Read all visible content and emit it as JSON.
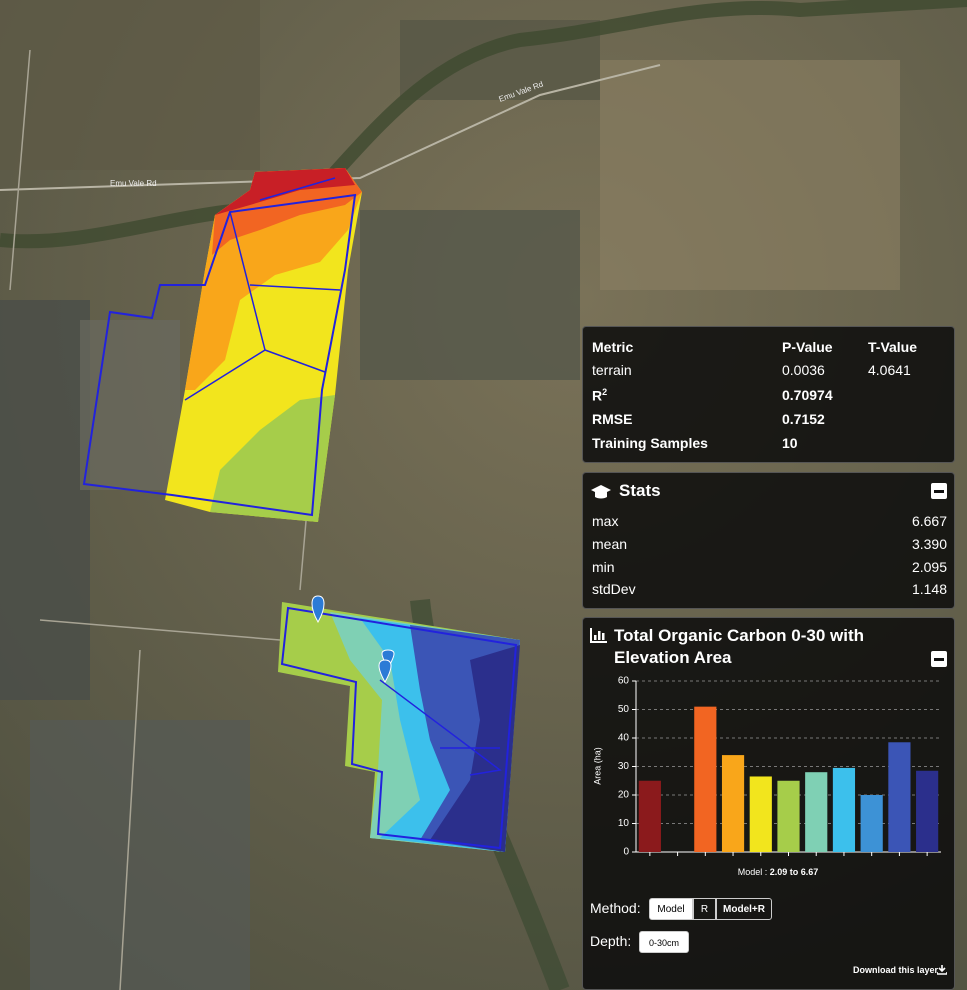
{
  "map": {
    "road_labels": [
      "Emu Vale Rd",
      "Emu Vale Rd"
    ]
  },
  "metrics": {
    "header": [
      "Metric",
      "P-Value",
      "T-Value"
    ],
    "rows": [
      {
        "metric": "terrain",
        "p_value": "0.0036",
        "t_value": "4.0641"
      },
      {
        "metric": "R",
        "superscript": "2",
        "p_value": "0.70974"
      },
      {
        "metric": "RMSE",
        "p_value": "0.7152"
      },
      {
        "metric": "Training Samples",
        "p_value": "10"
      }
    ]
  },
  "stats": {
    "title": "Stats",
    "rows": [
      [
        "max",
        "6.667"
      ],
      [
        "mean",
        "3.390"
      ],
      [
        "min",
        "2.095"
      ],
      [
        "stdDev",
        "1.148"
      ]
    ]
  },
  "layer_panel": {
    "title": "Total Organic Carbon 0-30 with Elevation Area",
    "method_label": "Method:",
    "methods": [
      "Model",
      "R",
      "Model+R"
    ],
    "depth_label": "Depth:",
    "depth": "0-30cm",
    "download": "Download this layer"
  },
  "chart_data": {
    "type": "bar",
    "ylabel": "Area (ha)",
    "xlabel_prefix": "Model :",
    "xlabel_range": "2.09 to 6.67",
    "categories": [
      null,
      null,
      null,
      null,
      null,
      null,
      null,
      null,
      null,
      null,
      null
    ],
    "values": [
      25,
      null,
      51,
      34,
      26.5,
      25,
      28,
      29.5,
      20,
      38.5,
      28.5
    ],
    "colors": [
      "#8b1a1c",
      null,
      "#f26522",
      "#f9a61a",
      "#f2e51d",
      "#a6cd4a",
      "#7fd0b4",
      "#3cc0ec",
      "#3d92d6",
      "#3b55b6",
      "#2b2f8c"
    ],
    "ylim": [
      0,
      60
    ],
    "yticks": [
      0,
      10,
      20,
      30,
      40,
      50,
      60
    ],
    "grid": true
  }
}
